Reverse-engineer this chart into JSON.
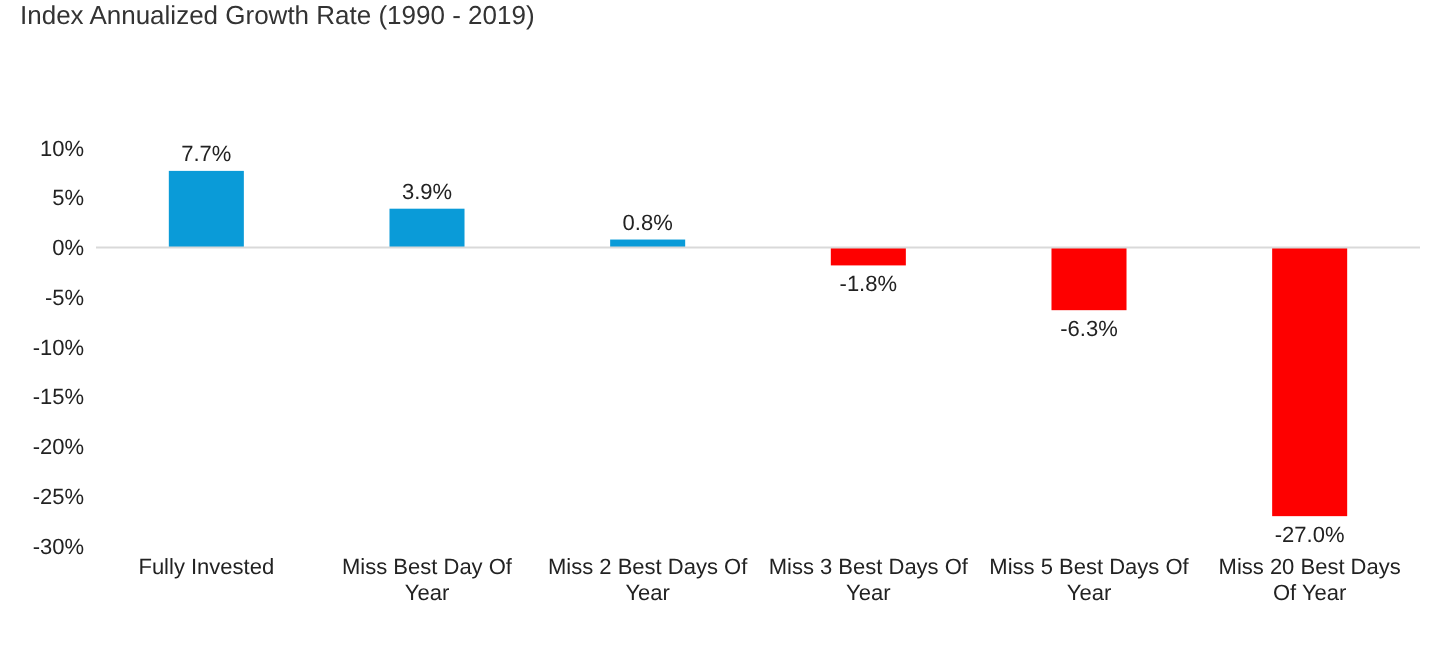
{
  "chart_data": {
    "type": "bar",
    "title": "Index Annualized Growth Rate (1990 - 2019)",
    "categories": [
      "Fully Invested",
      "Miss Best Day Of Year",
      "Miss 2 Best Days Of Year",
      "Miss 3 Best Days Of Year",
      "Miss 5 Best Days Of Year",
      "Miss 20 Best Days Of Year"
    ],
    "values": [
      7.7,
      3.9,
      0.8,
      -1.8,
      -6.3,
      -27.0
    ],
    "colors": [
      "#0a9bd8",
      "#0a9bd8",
      "#0a9bd8",
      "#fe0000",
      "#fe0000",
      "#fe0000"
    ],
    "value_labels": [
      "7.7%",
      "3.9%",
      "0.8%",
      "-1.8%",
      "-6.3%",
      "-27.0%"
    ],
    "ylim": [
      -30,
      10
    ],
    "yticks": [
      {
        "value": -30,
        "label": "-30%"
      },
      {
        "value": -25,
        "label": "-25%"
      },
      {
        "value": -20,
        "label": "-20%"
      },
      {
        "value": -15,
        "label": "-15%"
      },
      {
        "value": -10,
        "label": "-10%"
      },
      {
        "value": -5,
        "label": "-5%"
      },
      {
        "value": 0,
        "label": "0%"
      },
      {
        "value": 5,
        "label": "5%"
      },
      {
        "value": 10,
        "label": "10%"
      }
    ],
    "orientation": "vertical"
  }
}
